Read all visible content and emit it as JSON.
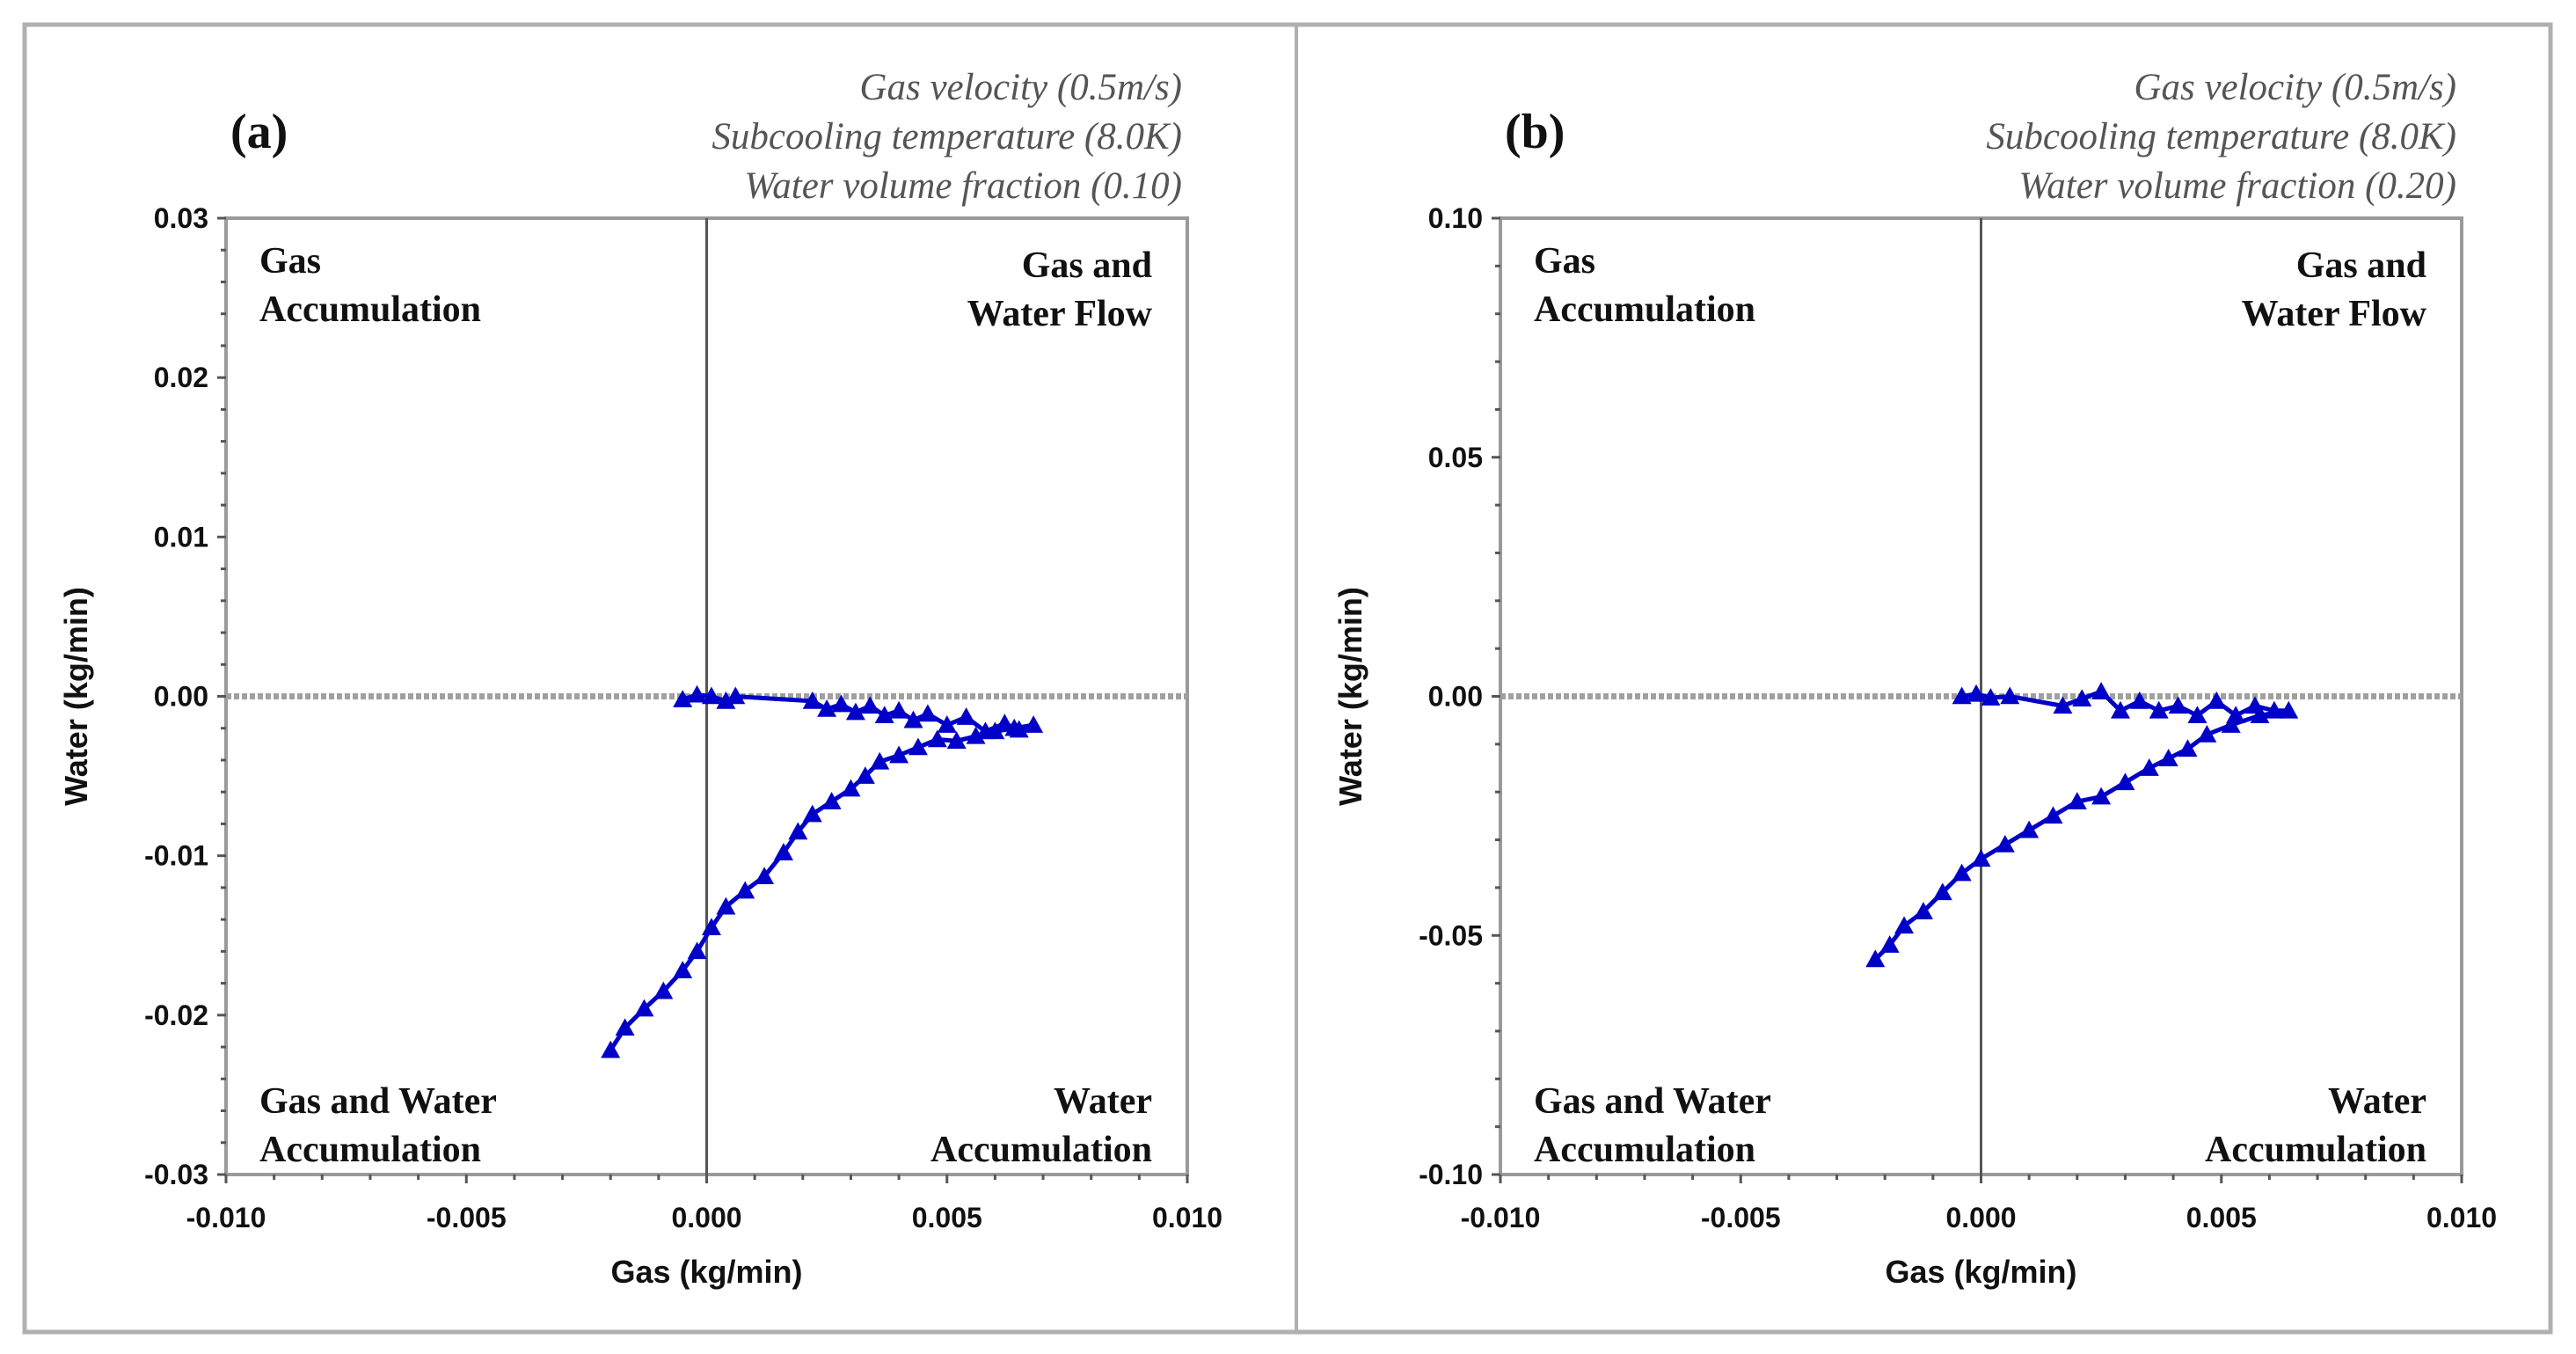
{
  "colors": {
    "series": "#0000c8",
    "frame": "#9a9a9a",
    "axis": "#555555",
    "zero_line": "#a0a0a0"
  },
  "chart_data": [
    {
      "type": "line",
      "panel_label": "(a)",
      "annotations": [
        "Gas velocity (0.5m/s)",
        "Subcooling temperature (8.0K)",
        "Water volume fraction (0.10)"
      ],
      "xlabel": "Gas (kg/min)",
      "ylabel": "Water (kg/min)",
      "xlim": [
        -0.01,
        0.01
      ],
      "ylim": [
        -0.03,
        0.03
      ],
      "xticks": [
        "-0.010",
        "-0.005",
        "0.000",
        "0.005",
        "0.010"
      ],
      "xtick_values": [
        -0.01,
        -0.005,
        0,
        0.005,
        0.01
      ],
      "yticks": [
        "0.03",
        "0.02",
        "0.01",
        "0.00",
        "-0.01",
        "-0.02",
        "-0.03"
      ],
      "ytick_values": [
        0.03,
        0.02,
        0.01,
        0,
        -0.01,
        -0.02,
        -0.03
      ],
      "quadrants": {
        "top_left": [
          "Gas",
          "Accumulation"
        ],
        "top_right": [
          "Gas and",
          "Water Flow"
        ],
        "bottom_left": [
          "Gas and Water",
          "Accumulation"
        ],
        "bottom_right": [
          "Water",
          "Accumulation"
        ]
      },
      "series": [
        {
          "name": "trajectory",
          "x": [
            -0.0005,
            -0.0002,
            0.0001,
            0.0004,
            0.0006,
            0.0022,
            0.0025,
            0.0028,
            0.0031,
            0.0034,
            0.0037,
            0.004,
            0.0043,
            0.0046,
            0.005,
            0.0054,
            0.0058,
            0.0062,
            0.0065,
            0.0068,
            0.0064,
            0.006,
            0.0056,
            0.0052,
            0.0048,
            0.0044,
            0.004,
            0.0036,
            0.0033,
            0.003,
            0.0026,
            0.0022,
            0.0019,
            0.0016,
            0.0012,
            0.0008,
            0.0004,
            0.0001,
            -0.0002,
            -0.0005,
            -0.0009,
            -0.0013,
            -0.0017,
            -0.002
          ],
          "y": [
            -0.0002,
            0.0001,
            0,
            -0.0003,
            0,
            -0.0003,
            -0.0008,
            -0.0005,
            -0.001,
            -0.0006,
            -0.0012,
            -0.0009,
            -0.0015,
            -0.0011,
            -0.0018,
            -0.0013,
            -0.0022,
            -0.0017,
            -0.0021,
            -0.0018,
            -0.002,
            -0.0022,
            -0.0025,
            -0.0028,
            -0.0027,
            -0.0032,
            -0.0037,
            -0.0041,
            -0.005,
            -0.0058,
            -0.0066,
            -0.0074,
            -0.0085,
            -0.0098,
            -0.0113,
            -0.0122,
            -0.0132,
            -0.0145,
            -0.016,
            -0.0172,
            -0.0185,
            -0.0196,
            -0.0208,
            -0.0222
          ]
        }
      ]
    },
    {
      "type": "line",
      "panel_label": "(b)",
      "annotations": [
        "Gas velocity (0.5m/s)",
        "Subcooling temperature (8.0K)",
        "Water volume fraction (0.20)"
      ],
      "xlabel": "Gas (kg/min)",
      "ylabel": "Water (kg/min)",
      "xlim": [
        -0.01,
        0.01
      ],
      "ylim": [
        -0.1,
        0.1
      ],
      "xticks": [
        "-0.010",
        "-0.005",
        "0.000",
        "0.005",
        "0.010"
      ],
      "xtick_values": [
        -0.01,
        -0.005,
        0,
        0.005,
        0.01
      ],
      "yticks": [
        "0.10",
        "0.05",
        "0.00",
        "-0.05",
        "-0.10"
      ],
      "ytick_values": [
        0.1,
        0.05,
        0,
        -0.05,
        -0.1
      ],
      "quadrants": {
        "top_left": [
          "Gas",
          "Accumulation"
        ],
        "top_right": [
          "Gas and",
          "Water Flow"
        ],
        "bottom_left": [
          "Gas and Water",
          "Accumulation"
        ],
        "bottom_right": [
          "Water",
          "Accumulation"
        ]
      },
      "series": [
        {
          "name": "trajectory",
          "x": [
            -0.0004,
            -0.0001,
            0.0002,
            0.0006,
            0.0017,
            0.0021,
            0.0025,
            0.0029,
            0.0033,
            0.0037,
            0.0041,
            0.0045,
            0.0049,
            0.0053,
            0.0057,
            0.0061,
            0.0064,
            0.0058,
            0.0052,
            0.0047,
            0.0043,
            0.0039,
            0.0035,
            0.003,
            0.0025,
            0.002,
            0.0015,
            0.001,
            0.0005,
            0,
            -0.0004,
            -0.0008,
            -0.0012,
            -0.0016,
            -0.0019,
            -0.0022
          ],
          "y": [
            0,
            0.0005,
            -0.0003,
            0,
            -0.002,
            -0.0005,
            0.001,
            -0.003,
            -0.001,
            -0.003,
            -0.002,
            -0.004,
            -0.001,
            -0.004,
            -0.002,
            -0.003,
            -0.003,
            -0.004,
            -0.006,
            -0.008,
            -0.011,
            -0.013,
            -0.015,
            -0.018,
            -0.021,
            -0.022,
            -0.025,
            -0.028,
            -0.031,
            -0.034,
            -0.037,
            -0.041,
            -0.045,
            -0.048,
            -0.052,
            -0.055
          ]
        }
      ]
    }
  ]
}
